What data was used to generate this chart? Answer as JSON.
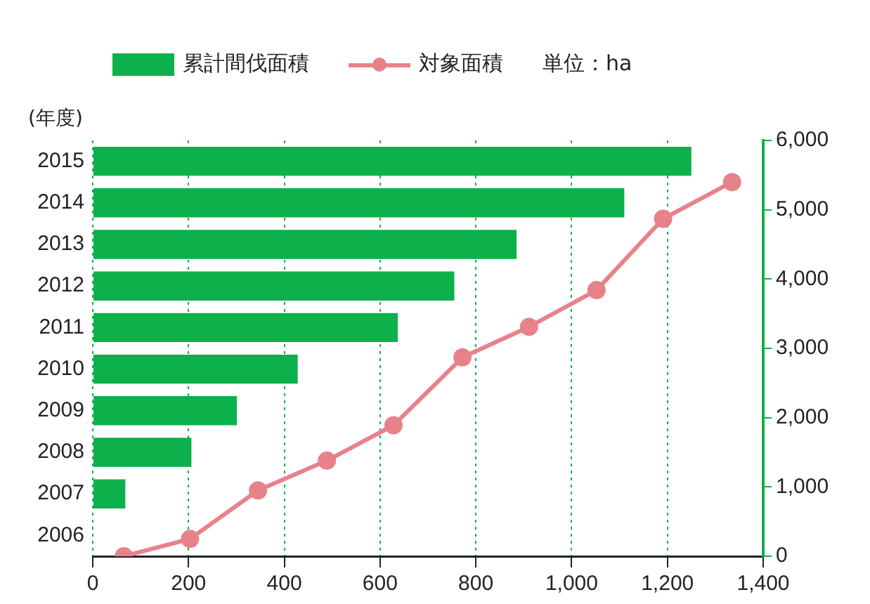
{
  "chart_data": [
    {
      "type": "bar",
      "orientation": "horizontal",
      "ylabel": "(年度)",
      "categories": [
        "2015",
        "2014",
        "2013",
        "2012",
        "2011",
        "2010",
        "2009",
        "2008",
        "2007",
        "2006"
      ],
      "series": [
        {
          "name": "累計間伐面積",
          "color": "#0cb14b",
          "values": [
            1250,
            1110,
            885,
            755,
            637,
            428,
            301,
            206,
            68,
            0
          ]
        }
      ],
      "xlim": [
        0,
        1400
      ],
      "xticks": [
        0,
        200,
        400,
        600,
        800,
        {
          "value": 1000,
          "label": "1,000"
        },
        {
          "value": 1200,
          "label": "1,200"
        },
        {
          "value": 1400,
          "label": "1,400"
        }
      ],
      "grid": "x",
      "legend": "top",
      "annotations": [
        "単位：ha"
      ]
    },
    {
      "type": "line",
      "series": [
        {
          "name": "対象面積",
          "color": "#e8828a",
          "marker": "circle",
          "x": [
            65,
            203,
            345,
            489,
            628,
            772,
            911,
            1052,
            1191,
            1335
          ],
          "values": [
            0,
            250,
            950,
            1380,
            1890,
            2870,
            3310,
            3840,
            4870,
            5400
          ]
        }
      ],
      "xlim": [
        0,
        1400
      ],
      "ylim": [
        0,
        6000
      ],
      "yticks": [
        0,
        {
          "value": 1000,
          "label": "1,000"
        },
        {
          "value": 2000,
          "label": "2,000"
        },
        {
          "value": 3000,
          "label": "3,000"
        },
        {
          "value": 4000,
          "label": "4,000"
        },
        {
          "value": 5000,
          "label": "5,000"
        },
        {
          "value": 6000,
          "label": "6,000"
        }
      ],
      "tick_labels": "y",
      "legend": "top"
    }
  ]
}
